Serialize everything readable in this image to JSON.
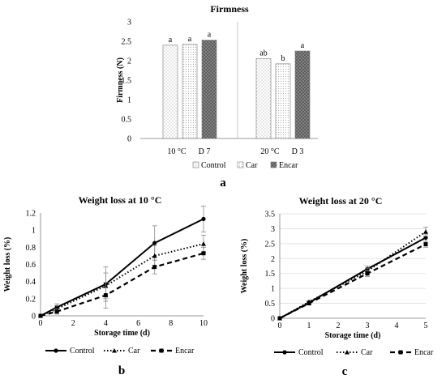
{
  "chart_data": [
    {
      "panel_label": "a",
      "type": "bar",
      "title": "Firmness",
      "ylabel": "Firmness (N)",
      "xlabel": "",
      "ylim": [
        0,
        3
      ],
      "yticks": [
        "0",
        "0.5",
        "1",
        "1.5",
        "2",
        "2.5",
        "3"
      ],
      "categories": [
        "10 °C D 7",
        "20 °C D 3"
      ],
      "category_labels": [
        [
          "10 °C",
          "D 7"
        ],
        [
          "20 °C",
          "D 3"
        ]
      ],
      "series": [
        {
          "name": "Control",
          "values": [
            2.4,
            2.05
          ],
          "letters": [
            "a",
            "ab"
          ]
        },
        {
          "name": "Car",
          "values": [
            2.42,
            1.92
          ],
          "letters": [
            "a",
            "b"
          ]
        },
        {
          "name": "Encar",
          "values": [
            2.53,
            2.25
          ],
          "letters": [
            "a",
            "a"
          ]
        }
      ],
      "legend_position": "bottom",
      "grid": false
    },
    {
      "panel_label": "b",
      "type": "line",
      "title": "Weight loss at 10 °C",
      "xlabel": "Storage time (d)",
      "ylabel": "Weight loss (%)",
      "xlim": [
        0,
        10
      ],
      "ylim": [
        0,
        1.2
      ],
      "xticks": [
        "0",
        "2",
        "4",
        "6",
        "8",
        "10"
      ],
      "yticks": [
        "0",
        "0.2",
        "0.4",
        "0.6",
        "0.8",
        "1",
        "1.2"
      ],
      "x": [
        0,
        1,
        4,
        7,
        10
      ],
      "series": [
        {
          "name": "Control",
          "values": [
            0,
            0.1,
            0.37,
            0.85,
            1.13
          ],
          "errors": [
            0,
            0.04,
            0.2,
            0.2,
            0.15
          ]
        },
        {
          "name": "Car",
          "values": [
            0,
            0.08,
            0.35,
            0.7,
            0.84
          ],
          "errors": [
            0,
            0.04,
            0.15,
            0.12,
            0.1
          ]
        },
        {
          "name": "Encar",
          "values": [
            0,
            0.05,
            0.24,
            0.57,
            0.73
          ],
          "errors": [
            0,
            0.03,
            0.15,
            0.08,
            0.07
          ]
        }
      ],
      "legend_position": "bottom",
      "grid": false
    },
    {
      "panel_label": "c",
      "type": "line",
      "title": "Weight loss at 20 °C",
      "xlabel": "Storage time (d)",
      "ylabel": "Weight loss (%)",
      "xlim": [
        0,
        5
      ],
      "ylim": [
        0,
        3.5
      ],
      "xticks": [
        "0",
        "1",
        "2",
        "3",
        "4",
        "5"
      ],
      "yticks": [
        "0",
        "0.5",
        "1",
        "1.5",
        "2",
        "2.5",
        "3",
        "3.5"
      ],
      "x": [
        0,
        1,
        3,
        5
      ],
      "series": [
        {
          "name": "Control",
          "values": [
            0,
            0.52,
            1.65,
            2.7
          ],
          "errors": [
            0,
            0.05,
            0.1,
            0.12
          ]
        },
        {
          "name": "Car",
          "values": [
            0,
            0.55,
            1.58,
            2.9
          ],
          "errors": [
            0,
            0.05,
            0.1,
            0.15
          ]
        },
        {
          "name": "Encar",
          "values": [
            0,
            0.5,
            1.5,
            2.48
          ],
          "errors": [
            0,
            0.05,
            0.1,
            0.1
          ]
        }
      ],
      "legend_position": "bottom",
      "grid": true
    }
  ]
}
